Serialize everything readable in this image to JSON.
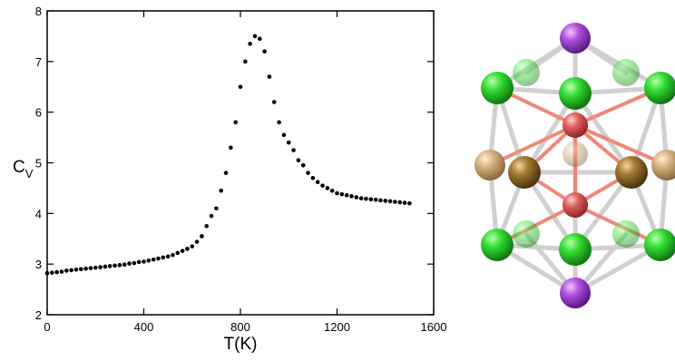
{
  "chart_data": {
    "type": "scatter",
    "xlabel": "T(K)",
    "ylabel": "C",
    "ylabel_subscript": "V",
    "color": "#000000",
    "xlim": [
      0,
      1600
    ],
    "ylim": [
      2,
      8
    ],
    "xticks": [
      0,
      400,
      800,
      1200,
      1600
    ],
    "yticks": [
      2,
      3,
      4,
      5,
      6,
      7,
      8
    ],
    "x": [
      0,
      20,
      40,
      60,
      80,
      100,
      120,
      140,
      160,
      180,
      200,
      220,
      240,
      260,
      280,
      300,
      320,
      340,
      360,
      380,
      400,
      420,
      440,
      460,
      480,
      500,
      520,
      540,
      560,
      580,
      600,
      620,
      640,
      660,
      680,
      700,
      720,
      740,
      760,
      780,
      800,
      820,
      840,
      860,
      880,
      900,
      920,
      940,
      960,
      980,
      1000,
      1020,
      1040,
      1060,
      1080,
      1100,
      1120,
      1140,
      1160,
      1180,
      1200,
      1220,
      1240,
      1260,
      1280,
      1300,
      1320,
      1340,
      1360,
      1380,
      1400,
      1420,
      1440,
      1460,
      1480,
      1500
    ],
    "values": [
      2.82,
      2.83,
      2.84,
      2.85,
      2.87,
      2.88,
      2.89,
      2.9,
      2.91,
      2.92,
      2.93,
      2.94,
      2.95,
      2.96,
      2.97,
      2.98,
      2.99,
      3.01,
      3.02,
      3.04,
      3.05,
      3.07,
      3.09,
      3.11,
      3.13,
      3.15,
      3.18,
      3.22,
      3.26,
      3.3,
      3.35,
      3.44,
      3.55,
      3.75,
      3.95,
      4.1,
      4.45,
      4.8,
      5.3,
      5.8,
      6.5,
      7.0,
      7.35,
      7.5,
      7.45,
      7.2,
      6.7,
      6.2,
      5.8,
      5.55,
      5.4,
      5.25,
      5.05,
      4.95,
      4.8,
      4.7,
      4.62,
      4.55,
      4.5,
      4.45,
      4.4,
      4.38,
      4.36,
      4.34,
      4.32,
      4.3,
      4.29,
      4.28,
      4.27,
      4.26,
      4.25,
      4.24,
      4.23,
      4.22,
      4.21,
      4.2
    ]
  }
}
